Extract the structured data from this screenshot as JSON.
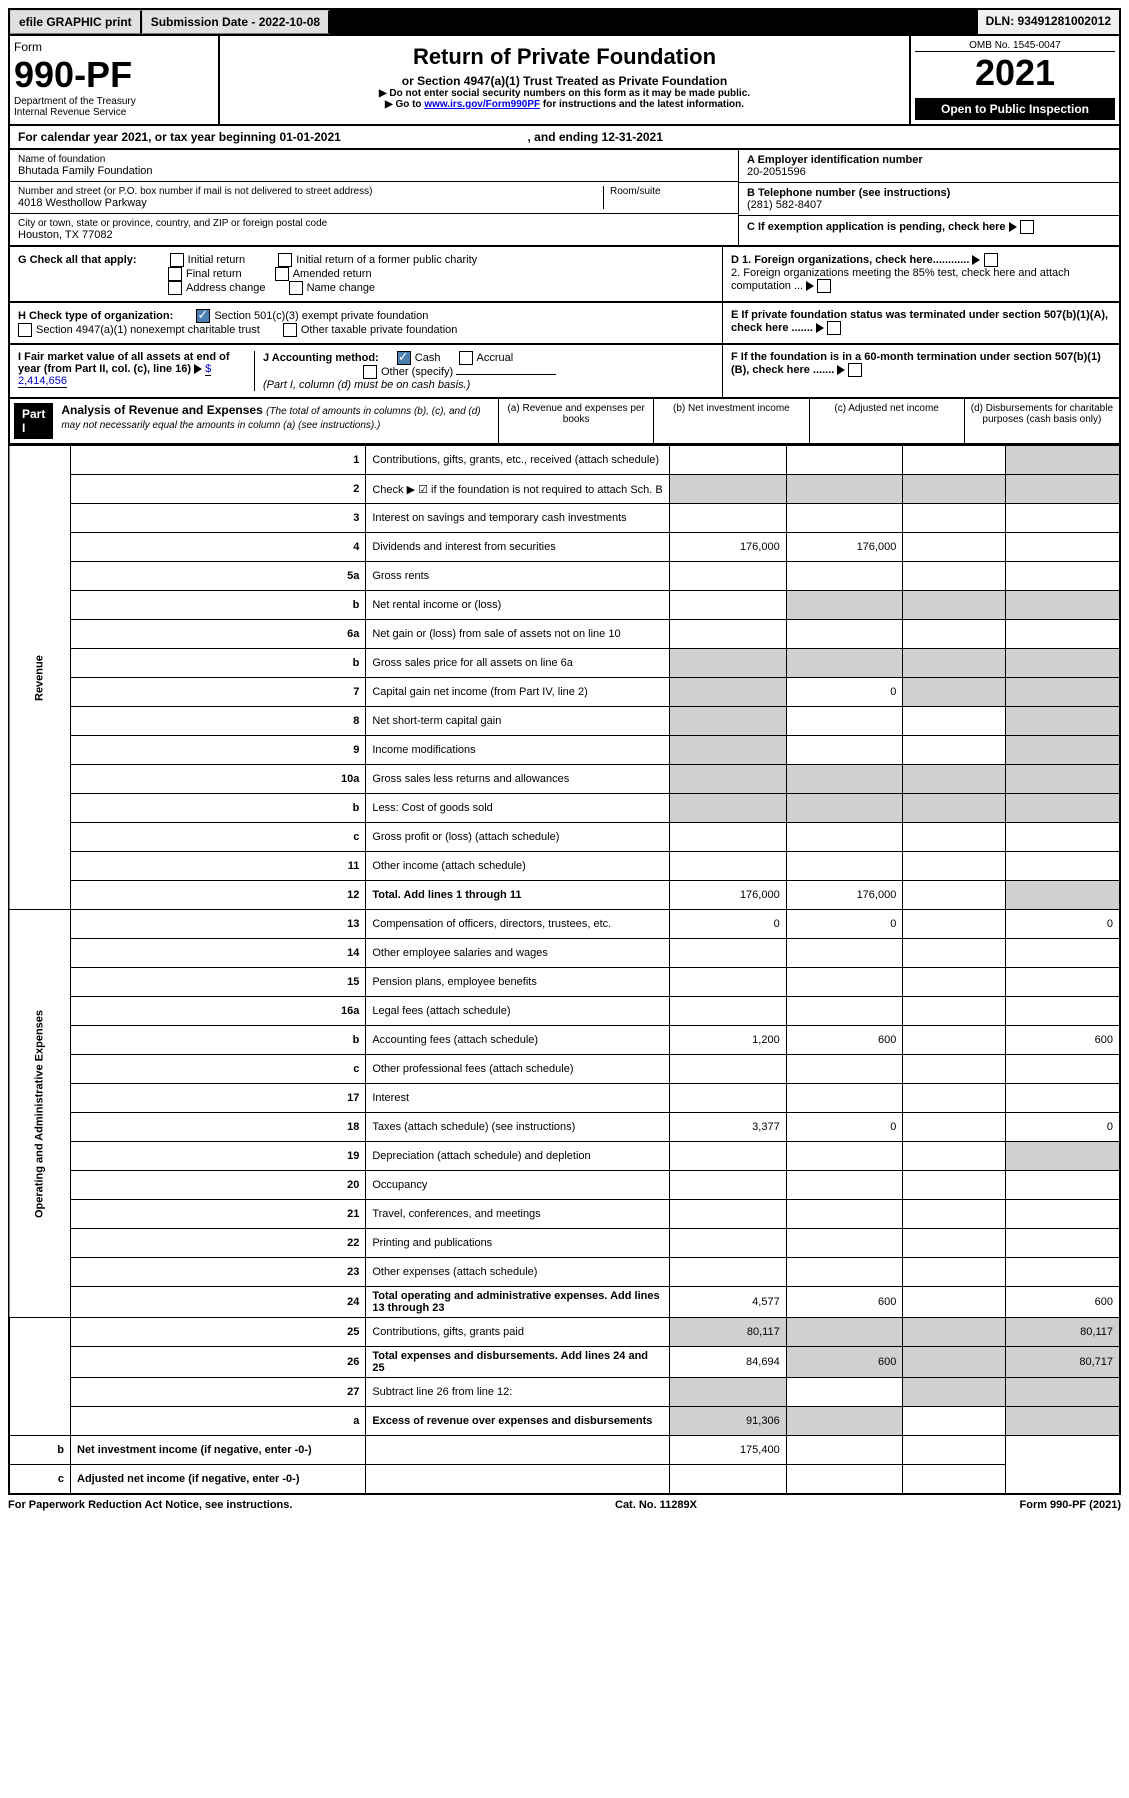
{
  "top": {
    "efile": "efile GRAPHIC print",
    "submission": "Submission Date - 2022-10-08",
    "dln": "DLN: 93491281002012"
  },
  "header": {
    "form": "Form",
    "number": "990-PF",
    "dept": "Department of the Treasury",
    "irs": "Internal Revenue Service",
    "title": "Return of Private Foundation",
    "subtitle": "or Section 4947(a)(1) Trust Treated as Private Foundation",
    "note1": "▶ Do not enter social security numbers on this form as it may be made public.",
    "note2_pre": "▶ Go to ",
    "note2_link": "www.irs.gov/Form990PF",
    "note2_post": " for instructions and the latest information.",
    "omb": "OMB No. 1545-0047",
    "year": "2021",
    "inspect": "Open to Public Inspection"
  },
  "cal": "For calendar year 2021, or tax year beginning 01-01-2021",
  "cal_end": ", and ending 12-31-2021",
  "name_label": "Name of foundation",
  "name": "Bhutada Family Foundation",
  "addr_label": "Number and street (or P.O. box number if mail is not delivered to street address)",
  "room_label": "Room/suite",
  "addr": "4018 Westhollow Parkway",
  "city_label": "City or town, state or province, country, and ZIP or foreign postal code",
  "city": "Houston, TX  77082",
  "ein_label": "A Employer identification number",
  "ein": "20-2051596",
  "tel_label": "B Telephone number (see instructions)",
  "tel": "(281) 582-8407",
  "c_label": "C If exemption application is pending, check here",
  "g_label": "G Check all that apply:",
  "g_opts": {
    "initial": "Initial return",
    "initial_former": "Initial return of a former public charity",
    "final": "Final return",
    "amended": "Amended return",
    "address": "Address change",
    "name": "Name change"
  },
  "d1": "D 1. Foreign organizations, check here............",
  "d2": "2. Foreign organizations meeting the 85% test, check here and attach computation ...",
  "h_label": "H Check type of organization:",
  "h_501": "Section 501(c)(3) exempt private foundation",
  "h_4947": "Section 4947(a)(1) nonexempt charitable trust",
  "h_other": "Other taxable private foundation",
  "e_label": "E If private foundation status was terminated under section 507(b)(1)(A), check here .......",
  "i_label": "I Fair market value of all assets at end of year (from Part II, col. (c), line 16)",
  "i_val": "$  2,414,656",
  "j_label": "J Accounting method:",
  "j_cash": "Cash",
  "j_accrual": "Accrual",
  "j_other": "Other (specify)",
  "j_note": "(Part I, column (d) must be on cash basis.)",
  "f_label": "F If the foundation is in a 60-month termination under section 507(b)(1)(B), check here .......",
  "part1": "Part I",
  "analysis_title": "Analysis of Revenue and Expenses",
  "analysis_note": "(The total of amounts in columns (b), (c), and (d) may not necessarily equal the amounts in column (a) (see instructions).)",
  "cols": {
    "a": "(a) Revenue and expenses per books",
    "b": "(b) Net investment income",
    "c": "(c) Adjusted net income",
    "d": "(d) Disbursements for charitable purposes (cash basis only)"
  },
  "side_rev": "Revenue",
  "side_exp": "Operating and Administrative Expenses",
  "rows": [
    {
      "n": "1",
      "label": "Contributions, gifts, grants, etc., received (attach schedule)"
    },
    {
      "n": "2",
      "label": "Check ▶ ☑ if the foundation is not required to attach Sch. B"
    },
    {
      "n": "3",
      "label": "Interest on savings and temporary cash investments"
    },
    {
      "n": "4",
      "label": "Dividends and interest from securities",
      "a": "176,000",
      "b": "176,000"
    },
    {
      "n": "5a",
      "label": "Gross rents"
    },
    {
      "n": "b",
      "label": "Net rental income or (loss)"
    },
    {
      "n": "6a",
      "label": "Net gain or (loss) from sale of assets not on line 10"
    },
    {
      "n": "b",
      "label": "Gross sales price for all assets on line 6a"
    },
    {
      "n": "7",
      "label": "Capital gain net income (from Part IV, line 2)",
      "b": "0"
    },
    {
      "n": "8",
      "label": "Net short-term capital gain"
    },
    {
      "n": "9",
      "label": "Income modifications"
    },
    {
      "n": "10a",
      "label": "Gross sales less returns and allowances"
    },
    {
      "n": "b",
      "label": "Less: Cost of goods sold"
    },
    {
      "n": "c",
      "label": "Gross profit or (loss) (attach schedule)"
    },
    {
      "n": "11",
      "label": "Other income (attach schedule)"
    },
    {
      "n": "12",
      "label": "Total. Add lines 1 through 11",
      "bold": true,
      "a": "176,000",
      "b": "176,000"
    },
    {
      "n": "13",
      "label": "Compensation of officers, directors, trustees, etc.",
      "a": "0",
      "b": "0",
      "d": "0"
    },
    {
      "n": "14",
      "label": "Other employee salaries and wages"
    },
    {
      "n": "15",
      "label": "Pension plans, employee benefits"
    },
    {
      "n": "16a",
      "label": "Legal fees (attach schedule)"
    },
    {
      "n": "b",
      "label": "Accounting fees (attach schedule)",
      "a": "1,200",
      "b": "600",
      "d": "600"
    },
    {
      "n": "c",
      "label": "Other professional fees (attach schedule)"
    },
    {
      "n": "17",
      "label": "Interest"
    },
    {
      "n": "18",
      "label": "Taxes (attach schedule) (see instructions)",
      "a": "3,377",
      "b": "0",
      "d": "0"
    },
    {
      "n": "19",
      "label": "Depreciation (attach schedule) and depletion"
    },
    {
      "n": "20",
      "label": "Occupancy"
    },
    {
      "n": "21",
      "label": "Travel, conferences, and meetings"
    },
    {
      "n": "22",
      "label": "Printing and publications"
    },
    {
      "n": "23",
      "label": "Other expenses (attach schedule)"
    },
    {
      "n": "24",
      "label": "Total operating and administrative expenses. Add lines 13 through 23",
      "bold": true,
      "a": "4,577",
      "b": "600",
      "d": "600"
    },
    {
      "n": "25",
      "label": "Contributions, gifts, grants paid",
      "a": "80,117",
      "d": "80,117"
    },
    {
      "n": "26",
      "label": "Total expenses and disbursements. Add lines 24 and 25",
      "bold": true,
      "a": "84,694",
      "b": "600",
      "d": "80,717"
    },
    {
      "n": "27",
      "label": "Subtract line 26 from line 12:"
    },
    {
      "n": "a",
      "label": "Excess of revenue over expenses and disbursements",
      "bold": true,
      "a": "91,306"
    },
    {
      "n": "b",
      "label": "Net investment income (if negative, enter -0-)",
      "bold": true,
      "b": "175,400"
    },
    {
      "n": "c",
      "label": "Adjusted net income (if negative, enter -0-)",
      "bold": true
    }
  ],
  "shaded": {
    "1": [
      "d"
    ],
    "2": [
      "a",
      "b",
      "c",
      "d"
    ],
    "5b": [
      "b",
      "c",
      "d"
    ],
    "6b": [
      "a",
      "b",
      "c",
      "d"
    ],
    "7": [
      "a",
      "c",
      "d"
    ],
    "8": [
      "a",
      "d"
    ],
    "9": [
      "a",
      "d"
    ],
    "10a": [
      "a",
      "b",
      "c",
      "d"
    ],
    "10b": [
      "a",
      "b",
      "c",
      "d"
    ],
    "12": [
      "d"
    ],
    "19": [
      "d"
    ],
    "25": [
      "b",
      "c"
    ],
    "27": [
      "a",
      "b",
      "c",
      "d"
    ],
    "27a": [
      "b",
      "c",
      "d"
    ],
    "27b": [
      "a",
      "c",
      "d"
    ],
    "27c": [
      "a",
      "b",
      "d"
    ]
  },
  "footer": {
    "left": "For Paperwork Reduction Act Notice, see instructions.",
    "center": "Cat. No. 11289X",
    "right": "Form 990-PF (2021)"
  }
}
